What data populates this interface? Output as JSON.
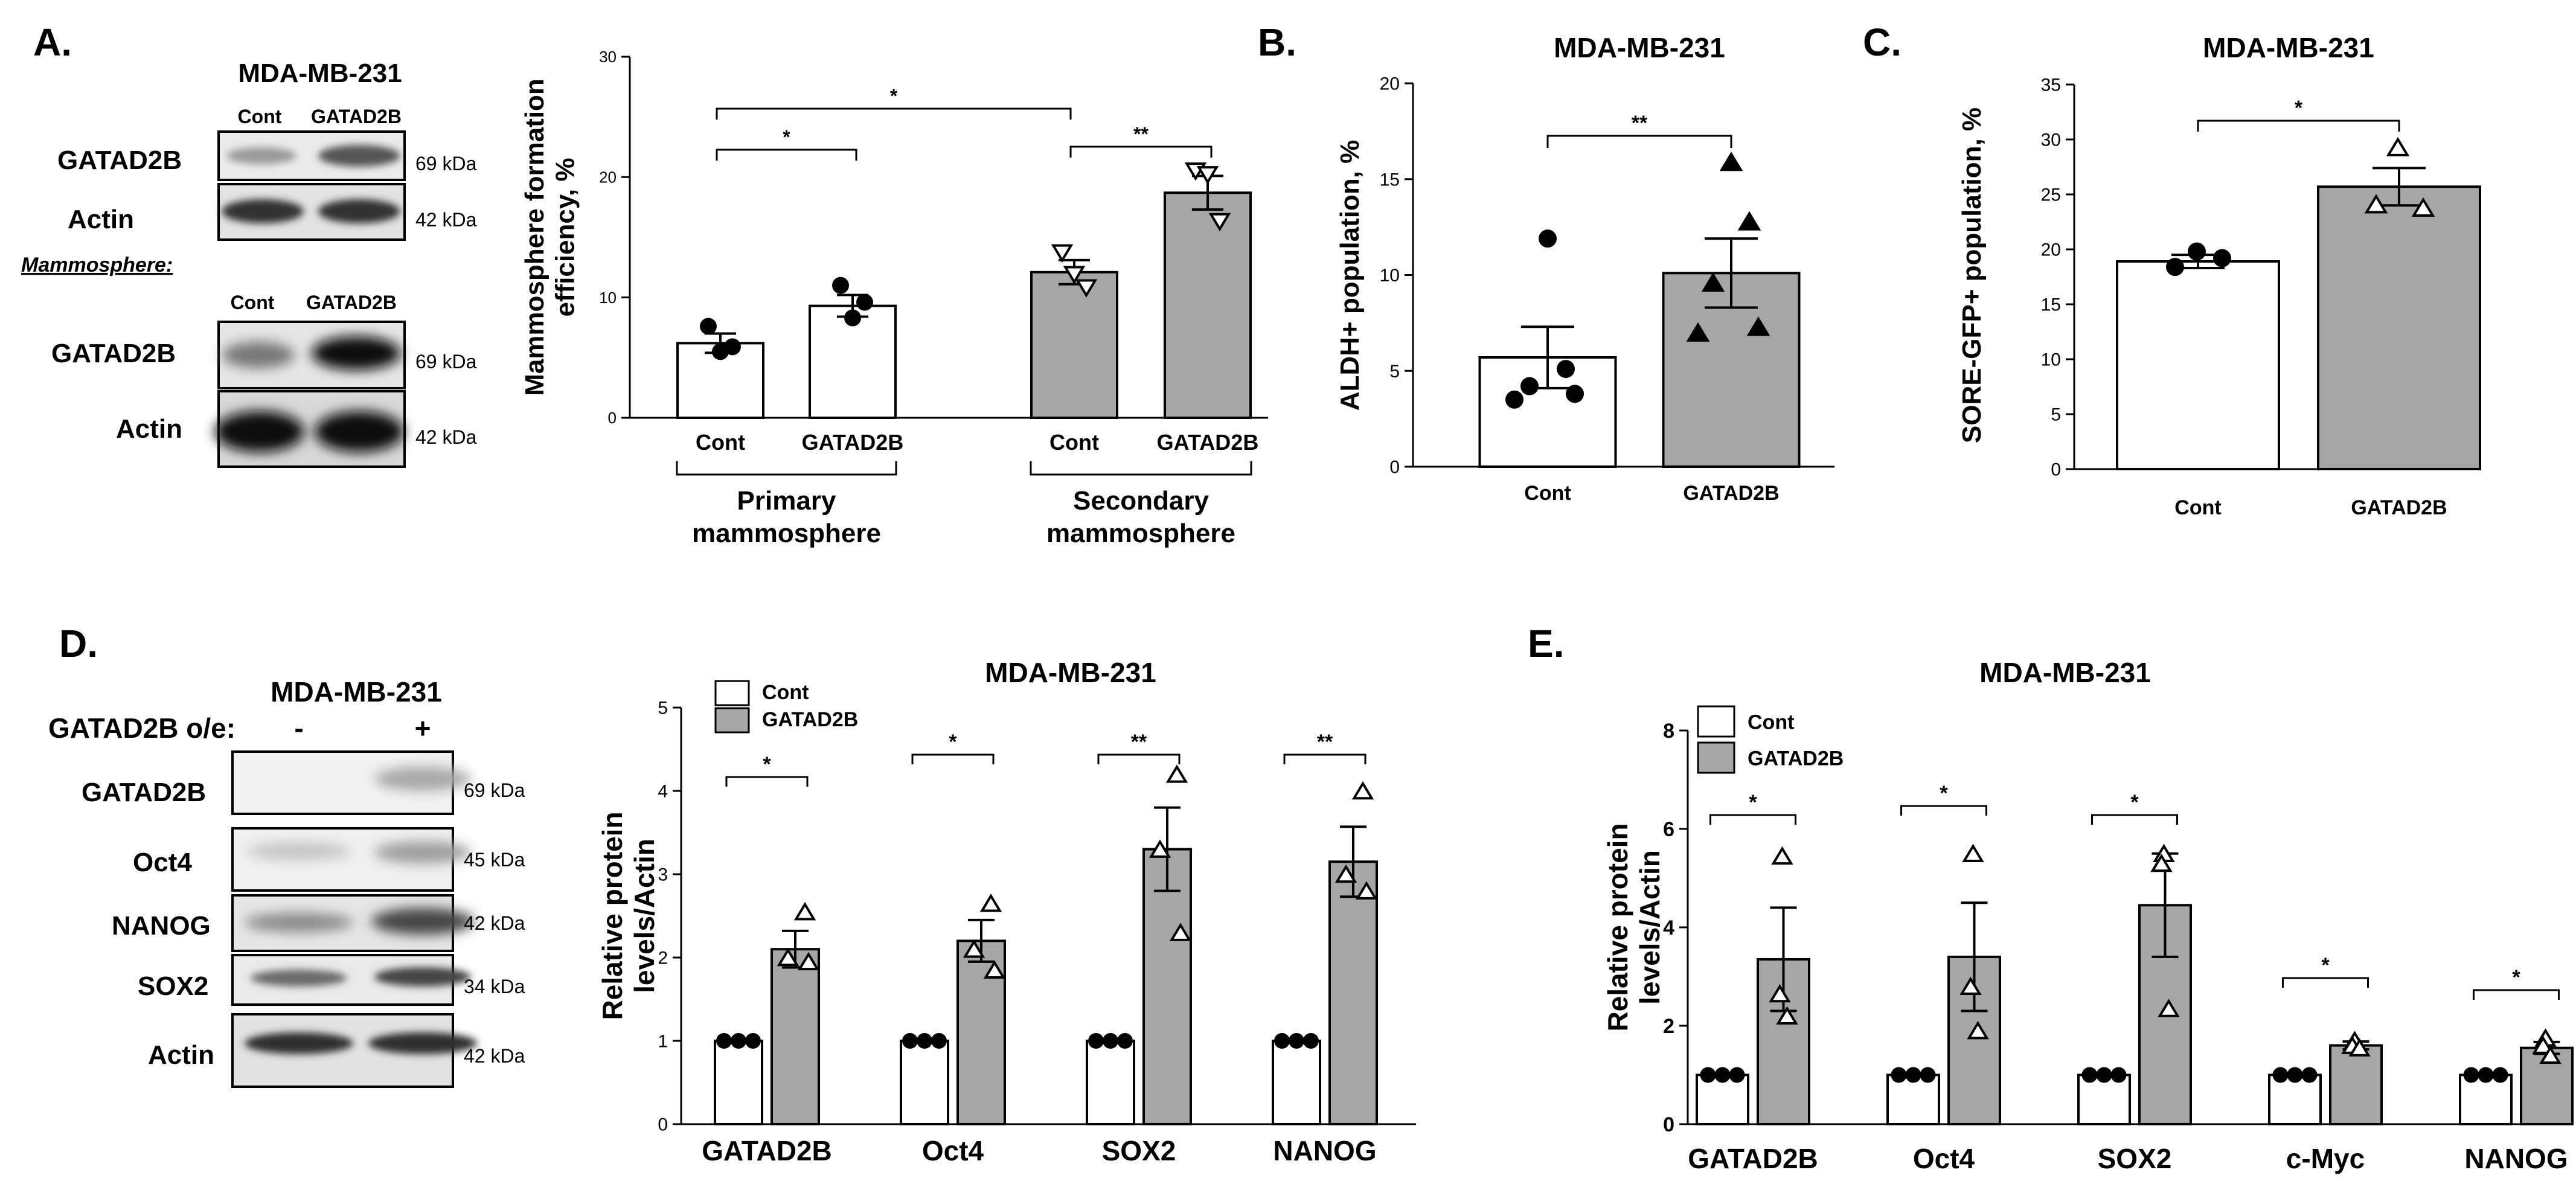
{
  "panels": {
    "A": {
      "letter": "A.",
      "blot1": {
        "cell_line": "MDA-MB-231",
        "lanes": [
          "Cont",
          "GATAD2B"
        ],
        "rows": [
          {
            "label": "GATAD2B",
            "kda": "69 kDa"
          },
          {
            "label": "Actin",
            "kda": "42 kDa"
          }
        ]
      },
      "mammosphere_label": "Mammosphere:",
      "blot2": {
        "lanes": [
          "Cont",
          "GATAD2B"
        ],
        "rows": [
          {
            "label": "GATAD2B",
            "kda": "69 kDa"
          },
          {
            "label": "Actin",
            "kda": "42 kDa"
          }
        ]
      }
    },
    "B": {
      "letter": "B."
    },
    "C": {
      "letter": "C."
    },
    "D": {
      "letter": "D.",
      "blot": {
        "cell_line": "MDA-MB-231",
        "oe_label": "GATAD2B o/e:",
        "lanes": [
          "-",
          "+"
        ],
        "rows": [
          {
            "label": "GATAD2B",
            "kda": "69 kDa"
          },
          {
            "label": "Oct4",
            "kda": "45 kDa"
          },
          {
            "label": "NANOG",
            "kda": "42 kDa"
          },
          {
            "label": "SOX2",
            "kda": "34 kDa"
          },
          {
            "label": "Actin",
            "kda": "42 kDa"
          }
        ]
      }
    },
    "E": {
      "letter": "E."
    }
  },
  "colors": {
    "cont_bar": "#ffffff",
    "gatad2b_bar": "#a6a6a6",
    "stroke": "#000000"
  },
  "chart_data": [
    {
      "id": "A",
      "type": "bar",
      "title": "",
      "ylabel": "Mammosphere formation efficiency, %",
      "ylim": [
        0,
        30
      ],
      "yticks": [
        "0",
        "10",
        "20",
        "30"
      ],
      "categories": [
        "Cont",
        "GATAD2B",
        "Cont",
        "GATAD2B"
      ],
      "groups": [
        "Primary mammosphere",
        "Secondary mammosphere"
      ],
      "values": [
        6.2,
        9.3,
        12.1,
        18.7
      ],
      "errors": [
        0.8,
        0.9,
        1.0,
        1.4
      ],
      "points": [
        [
          7.6,
          5.5,
          5.9
        ],
        [
          11.0,
          8.3,
          9.6
        ],
        [
          13.7,
          11.9,
          10.8
        ],
        [
          20.5,
          20.2,
          16.3
        ]
      ],
      "significance": [
        {
          "label": "*",
          "between": [
            0,
            1
          ]
        },
        {
          "label": "**",
          "between": [
            2,
            3
          ]
        },
        {
          "label": "*",
          "between": [
            0,
            2
          ]
        }
      ]
    },
    {
      "id": "B",
      "type": "bar",
      "title": "MDA-MB-231",
      "ylabel": "ALDH+ population, %",
      "ylim": [
        0,
        20
      ],
      "yticks": [
        "0",
        "5",
        "10",
        "15",
        "20"
      ],
      "categories": [
        "Cont",
        "GATAD2B"
      ],
      "values": [
        5.7,
        10.1
      ],
      "errors": [
        1.6,
        1.8
      ],
      "points": [
        [
          11.9,
          5.1,
          4.2,
          3.8,
          3.5
        ],
        [
          15.9,
          12.8,
          9.6,
          7.3,
          7.0
        ]
      ],
      "significance": [
        {
          "label": "**",
          "between": [
            0,
            1
          ]
        }
      ]
    },
    {
      "id": "C",
      "type": "bar",
      "title": "MDA-MB-231",
      "ylabel": "SORE-GFP+ population, %",
      "ylim": [
        0,
        35
      ],
      "yticks": [
        "0",
        "5",
        "10",
        "15",
        "20",
        "25",
        "30",
        "35"
      ],
      "categories": [
        "Cont",
        "GATAD2B"
      ],
      "values": [
        18.9,
        25.7
      ],
      "errors": [
        0.6,
        1.7
      ],
      "points": [
        [
          19.8,
          18.4,
          19.2
        ],
        [
          29.3,
          24.1,
          23.8
        ]
      ],
      "significance": [
        {
          "label": "*",
          "between": [
            0,
            1
          ]
        }
      ]
    },
    {
      "id": "D",
      "type": "bar",
      "title": "MDA-MB-231",
      "ylabel": "Relative protein levels/Actin",
      "ylim": [
        0,
        5
      ],
      "yticks": [
        "0",
        "1",
        "2",
        "3",
        "4",
        "5"
      ],
      "categories": [
        "GATAD2B",
        "Oct4",
        "SOX2",
        "NANOG"
      ],
      "legend": [
        "Cont",
        "GATAD2B"
      ],
      "series": [
        {
          "name": "Cont",
          "values": [
            1,
            1,
            1,
            1
          ],
          "errors": [
            0,
            0,
            0,
            0
          ]
        },
        {
          "name": "GATAD2B",
          "values": [
            2.1,
            2.2,
            3.3,
            3.15
          ],
          "errors": [
            0.22,
            0.25,
            0.5,
            0.42
          ]
        }
      ],
      "points_gatad2b": [
        [
          2.55,
          2.0,
          1.95
        ],
        [
          2.65,
          2.1,
          1.85
        ],
        [
          4.2,
          3.3,
          2.3
        ],
        [
          4.0,
          3.0,
          2.8
        ]
      ],
      "significance": [
        "*",
        "*",
        "**",
        "**"
      ]
    },
    {
      "id": "E",
      "type": "bar",
      "title": "MDA-MB-231",
      "ylabel": "Relative protein levels/Actin",
      "ylim": [
        0,
        8
      ],
      "yticks": [
        "0",
        "2",
        "4",
        "6",
        "8"
      ],
      "categories": [
        "GATAD2B",
        "Oct4",
        "SOX2",
        "c-Myc",
        "NANOG"
      ],
      "legend": [
        "Cont",
        "GATAD2B"
      ],
      "series": [
        {
          "name": "Cont",
          "values": [
            1,
            1,
            1,
            1,
            1
          ],
          "errors": [
            0,
            0,
            0,
            0,
            0
          ]
        },
        {
          "name": "GATAD2B",
          "values": [
            3.35,
            3.4,
            4.45,
            1.6,
            1.55
          ],
          "errors": [
            1.05,
            1.1,
            1.05,
            0.08,
            0.12
          ]
        }
      ],
      "points_gatad2b": [
        [
          5.45,
          2.65,
          2.2
        ],
        [
          5.5,
          2.8,
          1.9
        ],
        [
          5.5,
          5.3,
          2.35
        ],
        [
          1.7,
          1.6,
          1.55
        ],
        [
          1.75,
          1.6,
          1.4
        ]
      ],
      "significance": [
        "*",
        "*",
        "*",
        "*",
        "*"
      ]
    }
  ]
}
